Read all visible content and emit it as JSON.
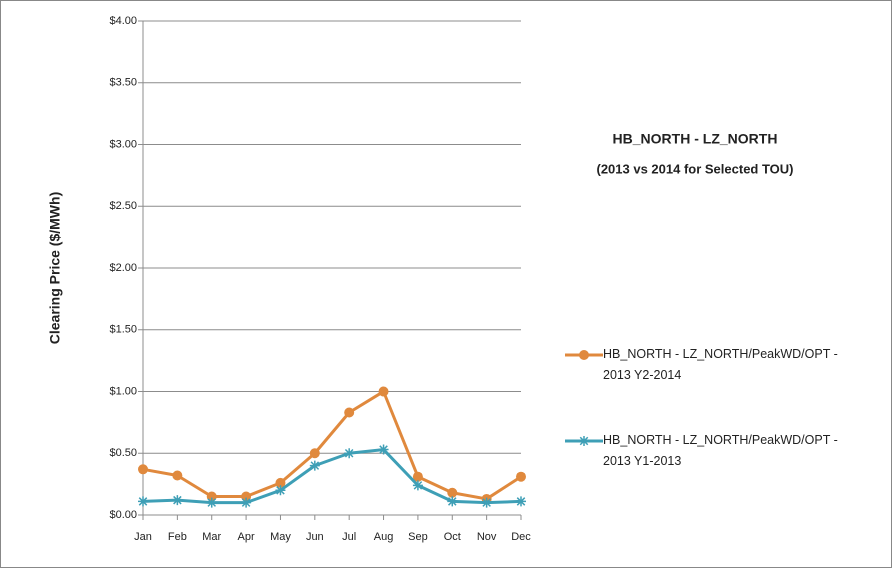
{
  "chart_data": {
    "type": "line",
    "title": "HB_NORTH - LZ_NORTH",
    "subtitle": "(2013 vs 2014 for Selected TOU)",
    "y_label": "Clearing Price ($/MWh)",
    "categories": [
      "Jan",
      "Feb",
      "Mar",
      "Apr",
      "May",
      "Jun",
      "Jul",
      "Aug",
      "Sep",
      "Oct",
      "Nov",
      "Dec"
    ],
    "series": [
      {
        "name": "HB_NORTH - LZ_NORTH/PeakWD/OPT - 2013 Y2-2014",
        "color": "#e0893d",
        "marker": "circle",
        "values": [
          0.37,
          0.32,
          0.15,
          0.15,
          0.26,
          0.5,
          0.83,
          1.0,
          0.31,
          0.18,
          0.13,
          0.31
        ]
      },
      {
        "name": "HB_NORTH - LZ_NORTH/PeakWD/OPT - 2013 Y1-2013",
        "color": "#3e9fb6",
        "marker": "asterisk",
        "values": [
          0.11,
          0.12,
          0.1,
          0.1,
          0.2,
          0.4,
          0.5,
          0.53,
          0.24,
          0.11,
          0.1,
          0.11
        ]
      }
    ],
    "ylim": [
      0,
      4
    ],
    "yticks": [
      {
        "value": 0,
        "label": "$0.00"
      },
      {
        "value": 0.5,
        "label": "$0.50"
      },
      {
        "value": 1,
        "label": "$1.00"
      },
      {
        "value": 1.5,
        "label": "$1.50"
      },
      {
        "value": 2,
        "label": "$2.00"
      },
      {
        "value": 2.5,
        "label": "$2.50"
      },
      {
        "value": 3,
        "label": "$3.00"
      },
      {
        "value": 3.5,
        "label": "$3.50"
      },
      {
        "value": 4,
        "label": "$4.00"
      }
    ],
    "grid": true
  }
}
